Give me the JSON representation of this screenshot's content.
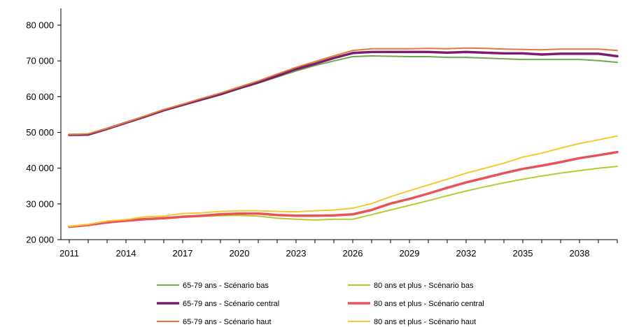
{
  "chart_data": {
    "type": "line",
    "title": "",
    "xlabel": "",
    "ylabel": "",
    "x": [
      2011,
      2012,
      2013,
      2014,
      2015,
      2016,
      2017,
      2018,
      2019,
      2020,
      2021,
      2022,
      2023,
      2024,
      2025,
      2026,
      2027,
      2028,
      2029,
      2030,
      2031,
      2032,
      2033,
      2034,
      2035,
      2036,
      2037,
      2038,
      2039,
      2040
    ],
    "x_tick_labels": [
      "2011",
      "2014",
      "2017",
      "2020",
      "2023",
      "2026",
      "2029",
      "2032",
      "2035",
      "2038"
    ],
    "x_ticks": [
      2011,
      2014,
      2017,
      2020,
      2023,
      2026,
      2029,
      2032,
      2035,
      2038
    ],
    "ylim": [
      20000,
      80000
    ],
    "y_ticks": [
      20000,
      30000,
      40000,
      50000,
      60000,
      70000,
      80000
    ],
    "y_tick_labels": [
      "20 000",
      "30 000",
      "40 000",
      "50 000",
      "60 000",
      "70 000",
      "80 000"
    ],
    "grid": false,
    "legend_position": "bottom",
    "series": [
      {
        "name": "65-79 ans - Scénario bas",
        "color": "#6aaa4f",
        "width": 2,
        "values": [
          49400,
          49500,
          51000,
          52700,
          54400,
          56200,
          57600,
          59100,
          60500,
          62200,
          63800,
          65500,
          67200,
          68700,
          70000,
          71200,
          71400,
          71300,
          71200,
          71200,
          71000,
          71000,
          70800,
          70600,
          70400,
          70400,
          70400,
          70400,
          70100,
          69600
        ]
      },
      {
        "name": "65-79 ans - Scénario central",
        "color": "#7a1f6e",
        "width": 3.5,
        "values": [
          49300,
          49400,
          51000,
          52700,
          54400,
          56200,
          57700,
          59200,
          60700,
          62400,
          64000,
          65800,
          67700,
          69200,
          70800,
          72200,
          72500,
          72500,
          72500,
          72500,
          72300,
          72500,
          72300,
          72100,
          72100,
          71800,
          72000,
          72000,
          72000,
          71300
        ]
      },
      {
        "name": "65-79 ans - Scénario haut",
        "color": "#e07b39",
        "width": 2,
        "values": [
          49400,
          49600,
          51100,
          52800,
          54600,
          56400,
          57900,
          59500,
          61000,
          62700,
          64400,
          66300,
          68200,
          69800,
          71400,
          72900,
          73400,
          73400,
          73400,
          73500,
          73400,
          73600,
          73500,
          73300,
          73200,
          73100,
          73300,
          73300,
          73300,
          72900
        ]
      },
      {
        "name": "80 ans et plus - Scénario bas",
        "color": "#b5cc2e",
        "width": 2,
        "values": [
          23700,
          24200,
          25000,
          25600,
          25900,
          26100,
          26300,
          26500,
          26700,
          26800,
          26600,
          26000,
          25700,
          25500,
          25700,
          25700,
          27000,
          28300,
          29600,
          30900,
          32300,
          33600,
          34800,
          35900,
          36900,
          37800,
          38600,
          39300,
          40000,
          40500
        ]
      },
      {
        "name": "80 ans et plus - Scénario central",
        "color": "#e8535a",
        "width": 3.5,
        "values": [
          23600,
          24100,
          24800,
          25300,
          25700,
          26000,
          26400,
          26700,
          27100,
          27300,
          27300,
          26900,
          26700,
          26700,
          26800,
          27100,
          28300,
          30100,
          31400,
          32900,
          34500,
          36000,
          37300,
          38600,
          39800,
          40700,
          41700,
          42800,
          43600,
          44500
        ]
      },
      {
        "name": "80 ans et plus - Scénario haut",
        "color": "#f5c830",
        "width": 2,
        "values": [
          23700,
          24300,
          25200,
          25600,
          26400,
          26600,
          27300,
          27500,
          27900,
          28100,
          28100,
          27900,
          27800,
          28100,
          28300,
          28800,
          30100,
          32000,
          33700,
          35300,
          36900,
          38600,
          40000,
          41400,
          43100,
          44200,
          45600,
          46900,
          47900,
          49000
        ]
      }
    ]
  }
}
